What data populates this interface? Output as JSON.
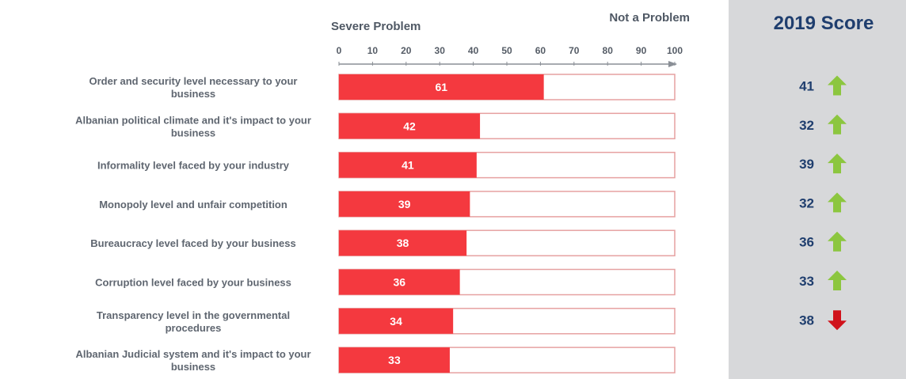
{
  "chart_data": {
    "type": "bar",
    "orientation": "horizontal",
    "axis_left_label": "Severe Problem",
    "axis_right_label": "Not a Problem",
    "xlim": [
      0,
      100
    ],
    "ticks": [
      0,
      10,
      20,
      30,
      40,
      50,
      60,
      70,
      80,
      90,
      100
    ],
    "categories": [
      [
        "Order and security level necessary to your",
        "business"
      ],
      [
        "Albanian political climate and it's impact to your",
        "business"
      ],
      [
        "Informality level faced by your industry"
      ],
      [
        "Monopoly level and unfair competition"
      ],
      [
        "Bureaucracy level faced by your business"
      ],
      [
        "Corruption level faced by your business"
      ],
      [
        "Transparency level in the governmental",
        "procedures"
      ],
      [
        "Albanian Judicial system and it's impact to your",
        "business"
      ]
    ],
    "values": [
      61,
      42,
      41,
      39,
      38,
      36,
      34,
      33
    ],
    "bar_color": "#f4393f",
    "bar_outline_color": "#e6a1a1",
    "score_panel": {
      "title": "2019 Score",
      "scores": [
        41,
        32,
        39,
        32,
        36,
        33,
        38
      ],
      "trends": [
        "up",
        "up",
        "up",
        "up",
        "up",
        "up",
        "down"
      ],
      "panel_color": "#d7d8da",
      "title_color": "#1f3e6e",
      "up_color": "#8cc63f",
      "down_color": "#d0121b"
    }
  }
}
